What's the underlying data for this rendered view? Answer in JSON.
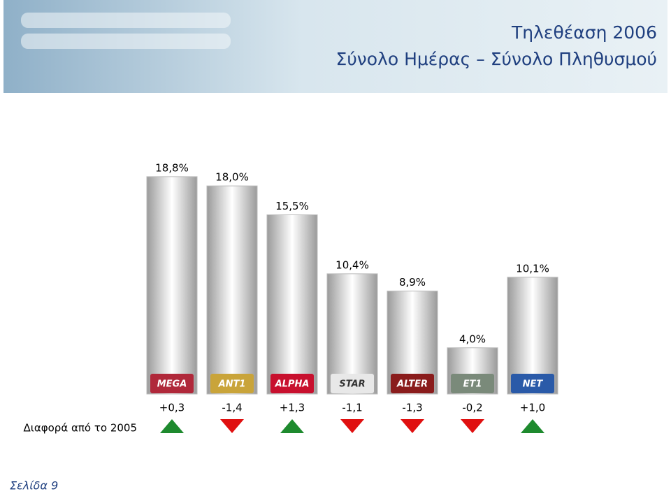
{
  "chart_data": {
    "type": "bar",
    "title": "Τηλεθέαση 2006",
    "subtitle": "Σύνολο Ημέρας – Σύνολο Πληθυσμού",
    "categories": [
      "MEGA",
      "ANT1",
      "ALPHA",
      "STAR",
      "ALTER",
      "ET1",
      "NET"
    ],
    "logo_colors": [
      "#b0283a",
      "#c9a43a",
      "#c8102e",
      "#e8e8e8",
      "#8a1c1c",
      "#7a8a7a",
      "#2a5aa8"
    ],
    "values": [
      18.8,
      18.0,
      15.5,
      10.4,
      8.9,
      4.0,
      10.1
    ],
    "value_labels": [
      "18,8%",
      "18,0%",
      "15,5%",
      "10,4%",
      "8,9%",
      "4,0%",
      "10,1%"
    ],
    "diff_annotation": "Διαφορά από το 2005",
    "diff_values": [
      0.3,
      -1.4,
      1.3,
      -1.1,
      -1.3,
      -0.2,
      1.0
    ],
    "diff_labels": [
      "+0,3",
      "-1,4",
      "+1,3",
      "-1,1",
      "-1,3",
      "-0,2",
      "+1,0"
    ],
    "up_color": "#1e8a2e",
    "down_color": "#e01010"
  },
  "footer": "Σελίδα 9"
}
